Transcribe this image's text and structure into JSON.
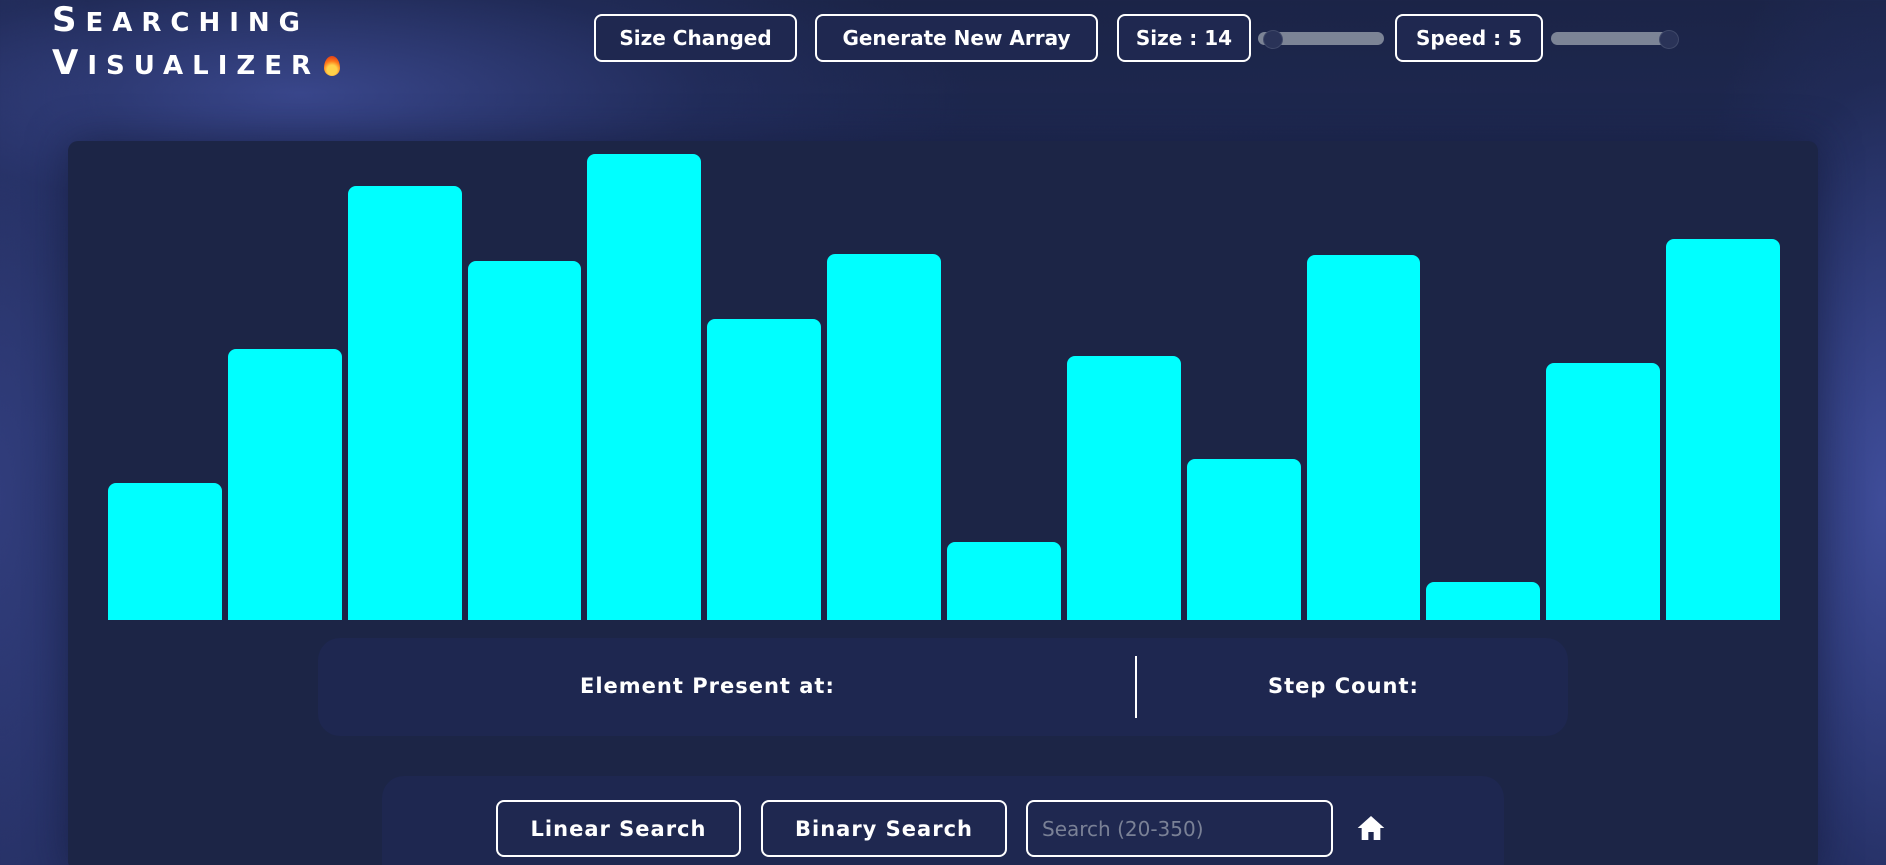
{
  "brand": {
    "line1_initial": "S",
    "line1_rest": "EARCHING",
    "line2_initial": "V",
    "line2_rest": "ISUALIZER",
    "flame_icon": "flame-icon"
  },
  "toolbar": {
    "size_changed_label": "Size Changed",
    "generate_label": "Generate New Array",
    "size_label": "Size : 14",
    "size_value": 14,
    "speed_label": "Speed : 5",
    "speed_value": 5
  },
  "array": {
    "values": [
      128,
      254,
      406,
      336,
      436,
      282,
      343,
      73,
      247,
      151,
      342,
      36,
      241,
      357
    ],
    "color": "#00ffff"
  },
  "info": {
    "element_label": "Element Present at:",
    "step_label": "Step Count:"
  },
  "controls": {
    "linear_label": "Linear Search",
    "binary_label": "Binary Search",
    "search_placeholder": "Search (20-350)",
    "home_icon": "home-icon"
  }
}
